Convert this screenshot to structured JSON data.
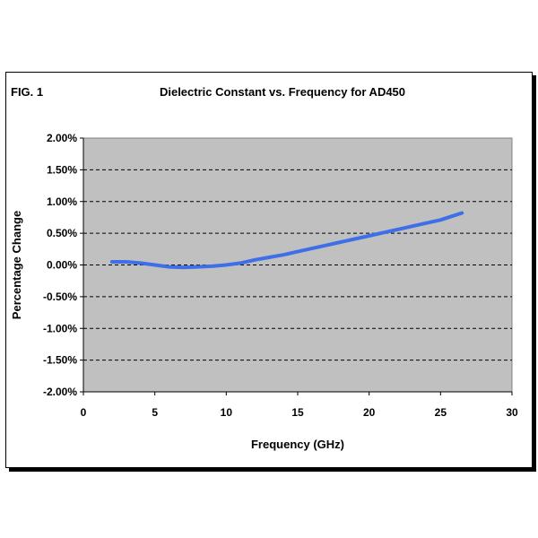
{
  "figure": {
    "label": "FIG. 1"
  },
  "chart_data": {
    "type": "line",
    "title": "Dielectric Constant vs. Frequency  for AD450",
    "xlabel": "Frequency (GHz)",
    "ylabel": "Percentage Change",
    "xlim": [
      0,
      30
    ],
    "ylim": [
      -2.0,
      2.0
    ],
    "x_ticks": [
      0,
      5,
      10,
      15,
      20,
      25,
      30
    ],
    "y_ticks": [
      2.0,
      1.5,
      1.0,
      0.5,
      0.0,
      -0.5,
      -1.0,
      -1.5,
      -2.0
    ],
    "y_tick_labels": [
      "2.00%",
      "1.50%",
      "1.00%",
      "0.50%",
      "0.00%",
      "-0.50%",
      "-1.00%",
      "-1.50%",
      "-2.00%"
    ],
    "grid": "horizontal dashed",
    "plot_background": "#c0c0c0",
    "series": [
      {
        "color": "#3f6fe8",
        "x": [
          2,
          3,
          4,
          5,
          6,
          7,
          8,
          9,
          10,
          11,
          12,
          13,
          14,
          15,
          16,
          17,
          18,
          19,
          20,
          21,
          22,
          23,
          24,
          25,
          26.5
        ],
        "y": [
          0.05,
          0.05,
          0.03,
          0.0,
          -0.03,
          -0.04,
          -0.03,
          -0.02,
          0.0,
          0.03,
          0.08,
          0.12,
          0.16,
          0.21,
          0.26,
          0.31,
          0.36,
          0.41,
          0.46,
          0.51,
          0.56,
          0.61,
          0.66,
          0.71,
          0.82
        ]
      }
    ]
  }
}
